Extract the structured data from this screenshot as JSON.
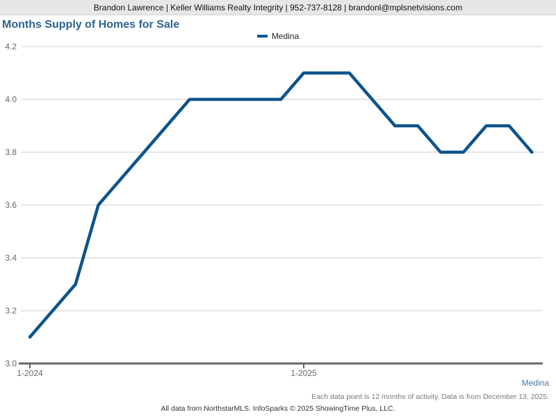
{
  "header": {
    "contact_line": "Brandon Lawrence | Keller Williams Realty Integrity | 952-737-8128 | brandonl@mplsnetvisions.com"
  },
  "title": "Months Supply of Homes for Sale",
  "legend": {
    "label": "Medina"
  },
  "chart_data": {
    "type": "line",
    "title": "Months Supply of Homes for Sale",
    "x": [
      "1-2024",
      "2-2024",
      "3-2024",
      "4-2024",
      "5-2024",
      "6-2024",
      "7-2024",
      "8-2024",
      "9-2024",
      "10-2024",
      "11-2024",
      "12-2024",
      "1-2025",
      "2-2025",
      "3-2025",
      "4-2025",
      "5-2025",
      "6-2025",
      "7-2025",
      "8-2025",
      "9-2025",
      "10-2025",
      "11-2025"
    ],
    "series": [
      {
        "name": "Medina",
        "color": "#0d548c",
        "values": [
          3.1,
          3.2,
          3.3,
          3.6,
          3.7,
          3.8,
          3.9,
          4.0,
          4.0,
          4.0,
          4.0,
          4.0,
          4.1,
          4.1,
          4.1,
          4.0,
          3.9,
          3.9,
          3.8,
          3.8,
          3.9,
          3.9,
          3.8
        ]
      }
    ],
    "ylim": [
      3.0,
      4.2
    ],
    "yticks": [
      3.0,
      3.2,
      3.4,
      3.6,
      3.8,
      4.0,
      4.2
    ],
    "ytick_decimals": 1,
    "xticks_shown": [
      "1-2024",
      "1-2025"
    ],
    "xlabel": "",
    "ylabel": "",
    "grid": "horizontal",
    "legend_position": "top-center"
  },
  "footer": {
    "series_label": "Medina",
    "note": "Each data point is 12 months of activity. Data is from December 13, 2025.",
    "attribution": "All data from NorthstarMLS. InfoSparks © 2025 ShowingTime Plus, LLC."
  },
  "colors": {
    "line": "#0d548c",
    "title": "#2d6393",
    "gridline": "#cccccc",
    "axis": "#666666",
    "tick_label": "#666666",
    "header_bg": "#e7e7e7",
    "footer_series_label": "#4d79ad"
  }
}
